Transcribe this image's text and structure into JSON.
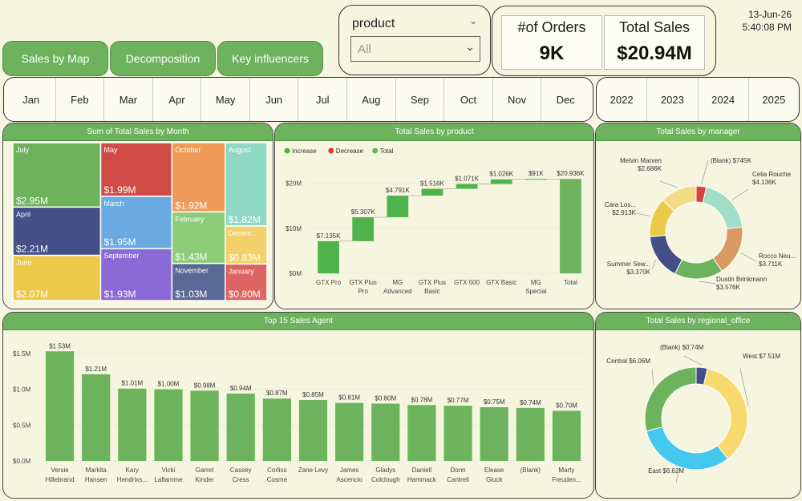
{
  "nav": {
    "sales_by_map": "Sales by Map",
    "decomposition": "Decomposition",
    "key_influencers": "Key influencers"
  },
  "slicer": {
    "title": "product",
    "value": "All"
  },
  "kpi": {
    "orders_label": "#of Orders",
    "orders_value": "9K",
    "sales_label": "Total Sales",
    "sales_value": "$20.94M"
  },
  "datetime": {
    "date": "13-Jun-26",
    "time": "5:40:08 PM"
  },
  "months": [
    "Jan",
    "Feb",
    "Mar",
    "Apr",
    "May",
    "Jun",
    "Jul",
    "Aug",
    "Sep",
    "Oct",
    "Nov",
    "Dec"
  ],
  "years": [
    "2022",
    "2023",
    "2024",
    "2025"
  ],
  "panels": {
    "treemap_title": "Sum of Total Sales by Month",
    "waterfall_title": "Total Sales by product",
    "manager_title": "Total Sales by manager",
    "agent_title": "Top 15 Sales Agent",
    "regional_title": "Total Sales by regional_office"
  },
  "chart_data": [
    {
      "type": "treemap",
      "title": "Sum of Total Sales by Month",
      "items": [
        {
          "name": "July",
          "label": "$2.95M",
          "value": 2.95,
          "color": "#6db35e"
        },
        {
          "name": "April",
          "label": "$2.21M",
          "value": 2.21,
          "color": "#434f86"
        },
        {
          "name": "June",
          "label": "$2.07M",
          "value": 2.07,
          "color": "#ecc94b"
        },
        {
          "name": "May",
          "label": "$1.99M",
          "value": 1.99,
          "color": "#d04a46"
        },
        {
          "name": "March",
          "label": "$1.95M",
          "value": 1.95,
          "color": "#6aaae0"
        },
        {
          "name": "September",
          "label": "$1.93M",
          "value": 1.93,
          "color": "#8c6ad6"
        },
        {
          "name": "October",
          "label": "$1.92M",
          "value": 1.92,
          "color": "#ee9b5a"
        },
        {
          "name": "February",
          "label": "$1.43M",
          "value": 1.43,
          "color": "#8ccc78"
        },
        {
          "name": "November",
          "label": "$1.03M",
          "value": 1.03,
          "color": "#5a6894"
        },
        {
          "name": "August",
          "label": "$1.82M",
          "value": 1.82,
          "color": "#8ed8c4"
        },
        {
          "name": "December",
          "display": "Decem...",
          "label": "$0.83M",
          "value": 0.83,
          "color": "#f3d06a"
        },
        {
          "name": "January",
          "label": "$0.80M",
          "value": 0.8,
          "color": "#dc6461"
        }
      ]
    },
    {
      "type": "waterfall",
      "title": "Total Sales by product",
      "legend": [
        "Increase",
        "Decrease",
        "Total"
      ],
      "legend_colors": [
        "#4db34a",
        "#e03a3a",
        "#6db35e"
      ],
      "categories": [
        [
          "GTX Pro"
        ],
        [
          "GTX Plus",
          "Pro"
        ],
        [
          "MG",
          "Advanced"
        ],
        [
          "GTX Plus",
          "Basic"
        ],
        [
          "GTX 500"
        ],
        [
          "GTX Basic"
        ],
        [
          "MG",
          "Special"
        ],
        [
          "Total"
        ]
      ],
      "values": [
        7135,
        5307,
        4791,
        1516,
        1071,
        1026,
        91,
        20936
      ],
      "labels": [
        "$7.135K",
        "$5.307K",
        "$4.791K",
        "$1.516K",
        "$1.071K",
        "$1.026K",
        "$91K",
        "$20.936K"
      ],
      "yticks": [
        "$0M",
        "$10M",
        "$20M"
      ],
      "ylim": [
        0,
        24000
      ]
    },
    {
      "type": "pie",
      "title": "Total Sales by manager",
      "slices": [
        {
          "name": "(Blank)",
          "value": 745,
          "label": "(Blank) $745K",
          "color": "#d64541"
        },
        {
          "name": "Celia Rouche",
          "value": 4136,
          "label": "Celia Rouche $4.136K",
          "color": "#a2ddc8"
        },
        {
          "name": "Rocco Neu...",
          "value": 3711,
          "label": "Rocco Neu... $3.711K",
          "color": "#d99a62"
        },
        {
          "name": "Dustin Brinkmann",
          "value": 3576,
          "label": "Dustin Brinkmann $3.576K",
          "color": "#6db35e"
        },
        {
          "name": "Summer Sew...",
          "value": 3370,
          "label": "Summer Sew... $3.370K",
          "color": "#434f86"
        },
        {
          "name": "Cara Los...",
          "value": 2913,
          "label": "Cara Los... $2.913K",
          "color": "#ecc94b"
        },
        {
          "name": "Melvin Marxen",
          "value": 2686,
          "label": "Melvin Marxen $2.686K",
          "color": "#f3dc86"
        }
      ]
    },
    {
      "type": "bar",
      "title": "Top 15 Sales Agent",
      "categories": [
        [
          "Versie",
          "Hillebrand"
        ],
        [
          "Markita",
          "Hansen"
        ],
        [
          "Kary",
          "Hendrixs..."
        ],
        [
          "Vicki",
          "Laflamme"
        ],
        [
          "Garret",
          "Kinder"
        ],
        [
          "Cassey",
          "Cress"
        ],
        [
          "Corliss",
          "Cosme"
        ],
        [
          "Zane Levy"
        ],
        [
          "James",
          "Ascencio"
        ],
        [
          "Gladys",
          "Colclough"
        ],
        [
          "Daniell",
          "Hammack"
        ],
        [
          "Donn",
          "Cantrell"
        ],
        [
          "Elease",
          "Gluck"
        ],
        [
          "(Blank)"
        ],
        [
          "Marty",
          "Freuden..."
        ]
      ],
      "values": [
        1.53,
        1.21,
        1.01,
        1.0,
        0.98,
        0.94,
        0.87,
        0.85,
        0.81,
        0.8,
        0.78,
        0.77,
        0.75,
        0.74,
        0.7
      ],
      "labels": [
        "$1.53M",
        "$1.21M",
        "$1.01M",
        "$1.00M",
        "$0.98M",
        "$0.94M",
        "$0.87M",
        "$0.85M",
        "$0.81M",
        "$0.80M",
        "$0.78M",
        "$0.77M",
        "$0.75M",
        "$0.74M",
        "$0.70M"
      ],
      "yticks": [
        "$0.0M",
        "$0.5M",
        "$1.0M",
        "$1.5M"
      ],
      "ylim": [
        0,
        1.6
      ],
      "color": "#6db35e"
    },
    {
      "type": "pie",
      "title": "Total Sales by regional_office",
      "slices": [
        {
          "name": "(Blank)",
          "value": 0.74,
          "label": "(Blank) $0.74M",
          "color": "#434f86"
        },
        {
          "name": "West",
          "value": 7.51,
          "label": "West $7.51M",
          "color": "#f8d96c"
        },
        {
          "name": "East",
          "value": 6.62,
          "label": "East $6.62M",
          "color": "#44c8ee"
        },
        {
          "name": "Central",
          "value": 6.06,
          "label": "Central $6.06M",
          "color": "#6db35e"
        }
      ]
    }
  ]
}
